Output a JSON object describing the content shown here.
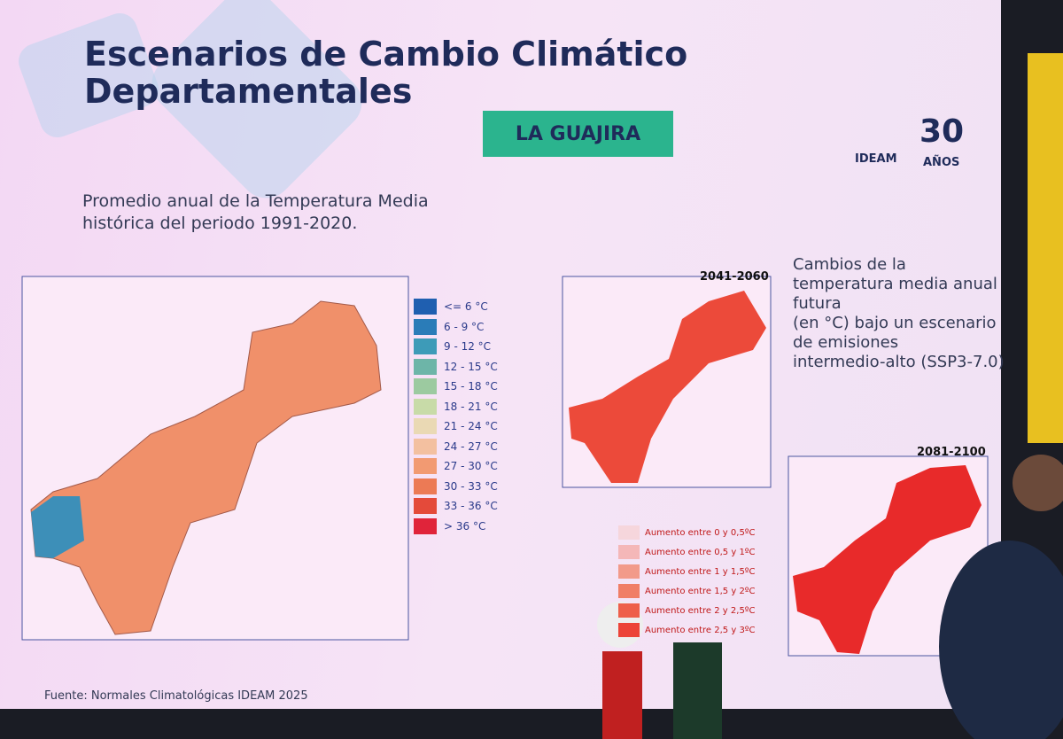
{
  "header": {
    "title_line1": "Escenarios de Cambio Climático",
    "title_line2": "Departamentales",
    "badge": "LA GUAJIRA",
    "logo": "IDEAM",
    "anniversary_number": "30",
    "anniversary_label": "AÑOS"
  },
  "historical": {
    "caption_line1": "Promedio anual de la Temperatura Media",
    "caption_line2": "histórica del periodo 1991-2020.",
    "legend": [
      {
        "label": "<= 6 °C",
        "color": "#1f5fb0"
      },
      {
        "label": "6 - 9 °C",
        "color": "#2a7cb8"
      },
      {
        "label": "9 - 12 °C",
        "color": "#3d9bb8"
      },
      {
        "label": "12 - 15 °C",
        "color": "#6db5a8"
      },
      {
        "label": "15 - 18 °C",
        "color": "#9ccaa0"
      },
      {
        "label": "18 - 21 °C",
        "color": "#c8dba8"
      },
      {
        "label": "21 - 24 °C",
        "color": "#ead9b4"
      },
      {
        "label": "24 - 27 °C",
        "color": "#f3c0a0"
      },
      {
        "label": "27 - 30 °C",
        "color": "#f29a72"
      },
      {
        "label": "30 - 33 °C",
        "color": "#ec7a55"
      },
      {
        "label": "33 - 36 °C",
        "color": "#e44a3a"
      },
      {
        "label": "> 36 °C",
        "color": "#e0243a"
      }
    ]
  },
  "projections": {
    "description": [
      "Cambios de la",
      "temperatura media anual",
      "futura",
      "(en °C) bajo un escenario",
      "de emisiones",
      "intermedio-alto (SSP3-7.0)"
    ],
    "maps": [
      {
        "period": "2041-2060"
      },
      {
        "period": "2081-2100"
      }
    ],
    "legend": [
      {
        "label": "Aumento entre 0 y 0,5ºC",
        "color": "#f6d6dc"
      },
      {
        "label": "Aumento entre 0,5 y 1ºC",
        "color": "#f4b7b8"
      },
      {
        "label": "Aumento entre 1 y 1,5ºC",
        "color": "#f29a8a"
      },
      {
        "label": "Aumento entre 1,5 y 2ºC",
        "color": "#f07e66"
      },
      {
        "label": "Aumento entre 2 y 2,5ºC",
        "color": "#ee5f4a"
      },
      {
        "label": "Aumento entre 2,5 y 3ºC",
        "color": "#ec4438"
      }
    ]
  },
  "footer": {
    "source": "Fuente: Normales Climatológicas IDEAM 2025"
  }
}
